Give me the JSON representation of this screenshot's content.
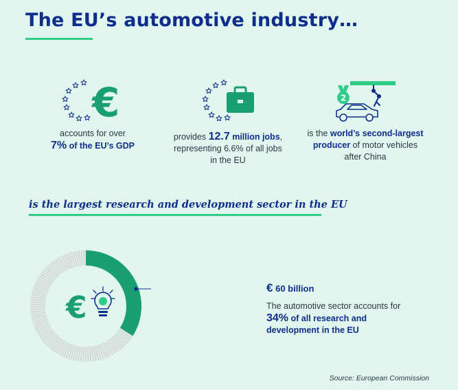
{
  "title": "The EU’s automotive industry…",
  "stats": [
    {
      "pre": "accounts for over",
      "big": "7%",
      "bold": "of the EU’s GDP",
      "post": ""
    },
    {
      "pre": "provides",
      "big": "12.7",
      "bold": "million jobs",
      "post": ", representing 6.6% of all jobs in the EU"
    },
    {
      "pre": "is the",
      "bold": "world’s second-largest producer",
      "post": "of motor vehicles after China"
    }
  ],
  "section_title": "is the largest research and development sector in the EU",
  "rd": {
    "currency": "€",
    "amount": "60 billion",
    "text_pre": "The automotive sector accounts for",
    "percent": "34%",
    "text_bold": "of all research and development in the EU",
    "share": 0.34
  },
  "icons": {
    "gdp": "euro-stars-icon",
    "jobs": "briefcase-stars-icon",
    "production": "robot-car-medal-icon",
    "rd": "euro-lightbulb-icon",
    "medal_number": "2"
  },
  "source": "Source: European Commission",
  "colors": {
    "navy": "#0f2e8c",
    "green": "#2ecc87",
    "teal": "#1a9e74",
    "grey": "#d4d7d5",
    "background": "#e0f6ee"
  }
}
